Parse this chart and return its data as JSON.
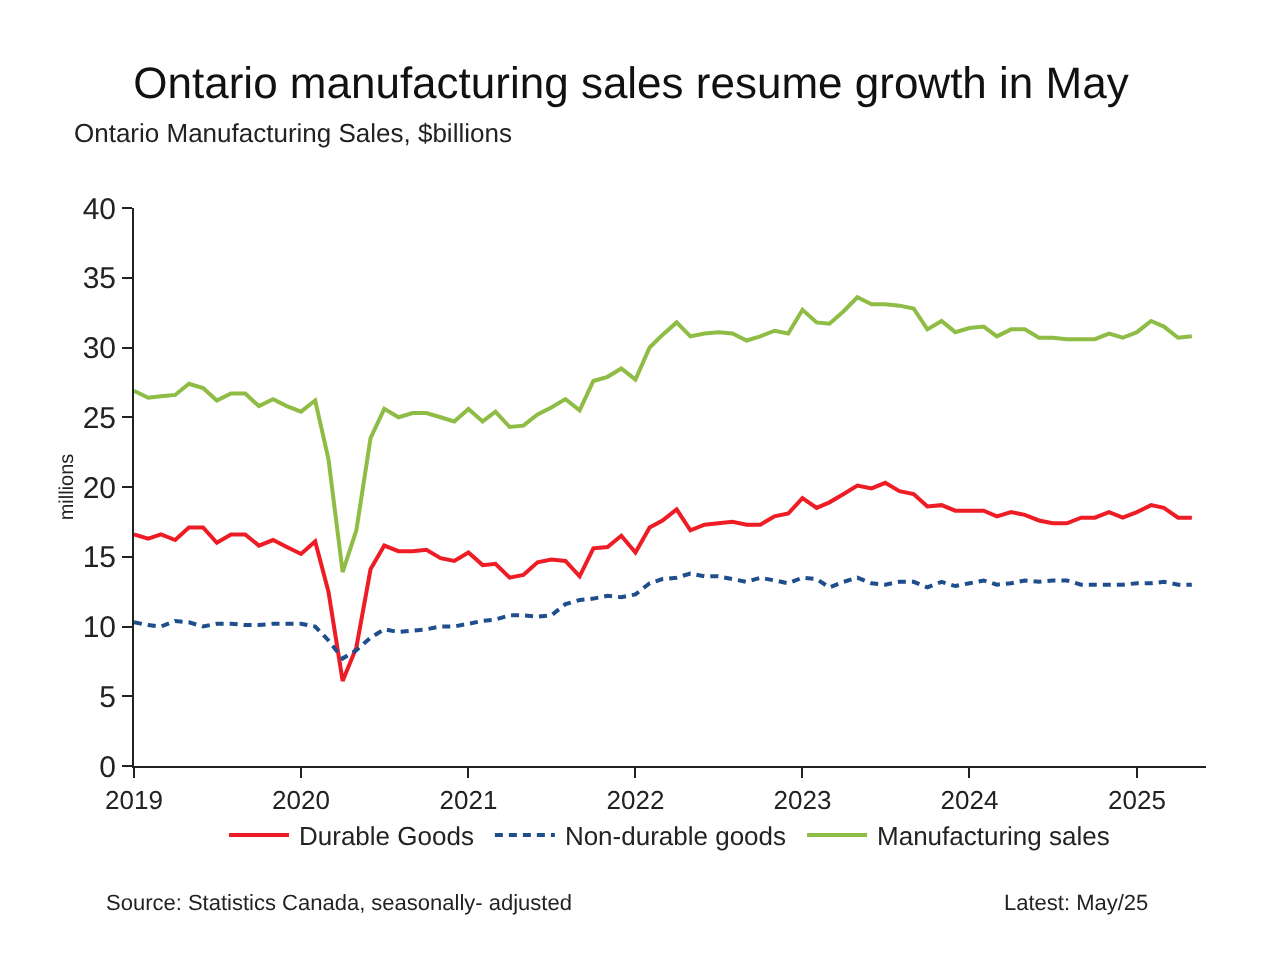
{
  "chart_data": {
    "type": "line",
    "title": "Ontario manufacturing sales resume growth in May",
    "subtitle": "Ontario Manufacturing Sales, $billions",
    "ylabel": "millions",
    "x": [
      "2019-01",
      "2019-02",
      "2019-03",
      "2019-04",
      "2019-05",
      "2019-06",
      "2019-07",
      "2019-08",
      "2019-09",
      "2019-10",
      "2019-11",
      "2019-12",
      "2020-01",
      "2020-02",
      "2020-03",
      "2020-04",
      "2020-05",
      "2020-06",
      "2020-07",
      "2020-08",
      "2020-09",
      "2020-10",
      "2020-11",
      "2020-12",
      "2021-01",
      "2021-02",
      "2021-03",
      "2021-04",
      "2021-05",
      "2021-06",
      "2021-07",
      "2021-08",
      "2021-09",
      "2021-10",
      "2021-11",
      "2021-12",
      "2022-01",
      "2022-02",
      "2022-03",
      "2022-04",
      "2022-05",
      "2022-06",
      "2022-07",
      "2022-08",
      "2022-09",
      "2022-10",
      "2022-11",
      "2022-12",
      "2023-01",
      "2023-02",
      "2023-03",
      "2023-04",
      "2023-05",
      "2023-06",
      "2023-07",
      "2023-08",
      "2023-09",
      "2023-10",
      "2023-11",
      "2023-12",
      "2024-01",
      "2024-02",
      "2024-03",
      "2024-04",
      "2024-05",
      "2024-06",
      "2024-07",
      "2024-08",
      "2024-09",
      "2024-10",
      "2024-11",
      "2024-12",
      "2025-01",
      "2025-02",
      "2025-03",
      "2025-04",
      "2025-05"
    ],
    "series": [
      {
        "name": "Durable Goods",
        "color": "#ee1c25",
        "line_style": "solid",
        "values": [
          16.6,
          16.3,
          16.6,
          16.2,
          17.1,
          17.1,
          16.0,
          16.6,
          16.6,
          15.8,
          16.2,
          15.7,
          15.2,
          16.1,
          12.5,
          6.1,
          8.5,
          14.1,
          15.8,
          15.4,
          15.4,
          15.5,
          14.9,
          14.7,
          15.3,
          14.4,
          14.5,
          13.5,
          13.7,
          14.6,
          14.8,
          14.7,
          13.6,
          15.6,
          15.7,
          16.5,
          15.3,
          17.1,
          17.6,
          18.4,
          16.9,
          17.3,
          17.4,
          17.5,
          17.3,
          17.3,
          17.9,
          18.1,
          19.2,
          18.5,
          18.9,
          19.5,
          20.1,
          19.9,
          20.3,
          19.7,
          19.5,
          18.6,
          18.7,
          18.3,
          18.3,
          18.3,
          17.9,
          18.2,
          18.0,
          17.6,
          17.4,
          17.4,
          17.8,
          17.8,
          18.2,
          17.8,
          18.2,
          18.7,
          18.5,
          17.8,
          17.8
        ]
      },
      {
        "name": "Non-durable goods",
        "color": "#1f4e8c",
        "line_style": "dashed",
        "values": [
          10.3,
          10.1,
          10.0,
          10.4,
          10.3,
          10.0,
          10.2,
          10.2,
          10.1,
          10.1,
          10.2,
          10.2,
          10.2,
          10.0,
          9.0,
          7.7,
          8.3,
          9.2,
          9.8,
          9.6,
          9.7,
          9.8,
          10.0,
          10.0,
          10.2,
          10.4,
          10.5,
          10.8,
          10.8,
          10.7,
          10.8,
          11.6,
          11.9,
          12.0,
          12.2,
          12.1,
          12.3,
          13.1,
          13.4,
          13.5,
          13.8,
          13.6,
          13.6,
          13.4,
          13.2,
          13.5,
          13.3,
          13.1,
          13.5,
          13.4,
          12.8,
          13.2,
          13.5,
          13.1,
          13.0,
          13.2,
          13.2,
          12.8,
          13.2,
          12.9,
          13.1,
          13.3,
          13.0,
          13.1,
          13.3,
          13.2,
          13.3,
          13.3,
          13.0,
          13.0,
          13.0,
          13.0,
          13.1,
          13.1,
          13.2,
          13.0,
          13.0
        ]
      },
      {
        "name": "Manufacturing sales",
        "color": "#8fbc45",
        "line_style": "solid",
        "values": [
          26.9,
          26.4,
          26.5,
          26.6,
          27.4,
          27.1,
          26.2,
          26.7,
          26.7,
          25.8,
          26.3,
          25.8,
          25.4,
          26.2,
          22.0,
          13.9,
          16.9,
          23.5,
          25.6,
          25.0,
          25.3,
          25.3,
          25.0,
          24.7,
          25.6,
          24.7,
          25.4,
          24.3,
          24.4,
          25.2,
          25.7,
          26.3,
          25.5,
          27.6,
          27.9,
          28.5,
          27.7,
          30.0,
          30.9,
          31.8,
          30.8,
          31.0,
          31.1,
          31.0,
          30.5,
          30.8,
          31.2,
          31.0,
          32.7,
          31.8,
          31.7,
          32.6,
          33.6,
          33.1,
          33.1,
          33.0,
          32.8,
          31.3,
          31.9,
          31.1,
          31.4,
          31.5,
          30.8,
          31.3,
          31.3,
          30.7,
          30.7,
          30.6,
          30.6,
          30.6,
          31.0,
          30.7,
          31.1,
          31.9,
          31.5,
          30.7,
          30.8
        ]
      }
    ],
    "xlim": [
      "2019-01",
      "2025-06"
    ],
    "xticks": [
      {
        "value": "2019-01",
        "label": "2019"
      },
      {
        "value": "2020-01",
        "label": "2020"
      },
      {
        "value": "2021-01",
        "label": "2021"
      },
      {
        "value": "2022-01",
        "label": "2022"
      },
      {
        "value": "2023-01",
        "label": "2023"
      },
      {
        "value": "2024-01",
        "label": "2024"
      },
      {
        "value": "2025-01",
        "label": "2025"
      }
    ],
    "ylim": [
      0,
      40
    ],
    "yticks": [
      0,
      5,
      10,
      15,
      20,
      25,
      30,
      35,
      40
    ],
    "legend": "bottom",
    "marker": "none",
    "annotations": [
      "Source: Statistics Canada, seasonally- adjusted",
      "Latest: May/25"
    ]
  }
}
